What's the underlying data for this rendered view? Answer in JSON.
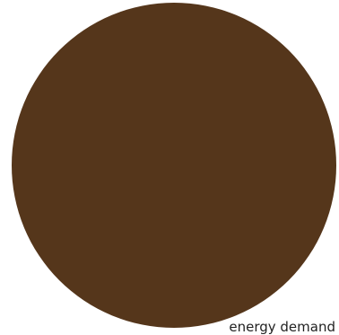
{
  "chart_data": {
    "type": "pie",
    "title": "",
    "slices": [
      {
        "label": "energy demand",
        "value": 100,
        "color": "#55361b"
      }
    ],
    "legend": "none"
  }
}
